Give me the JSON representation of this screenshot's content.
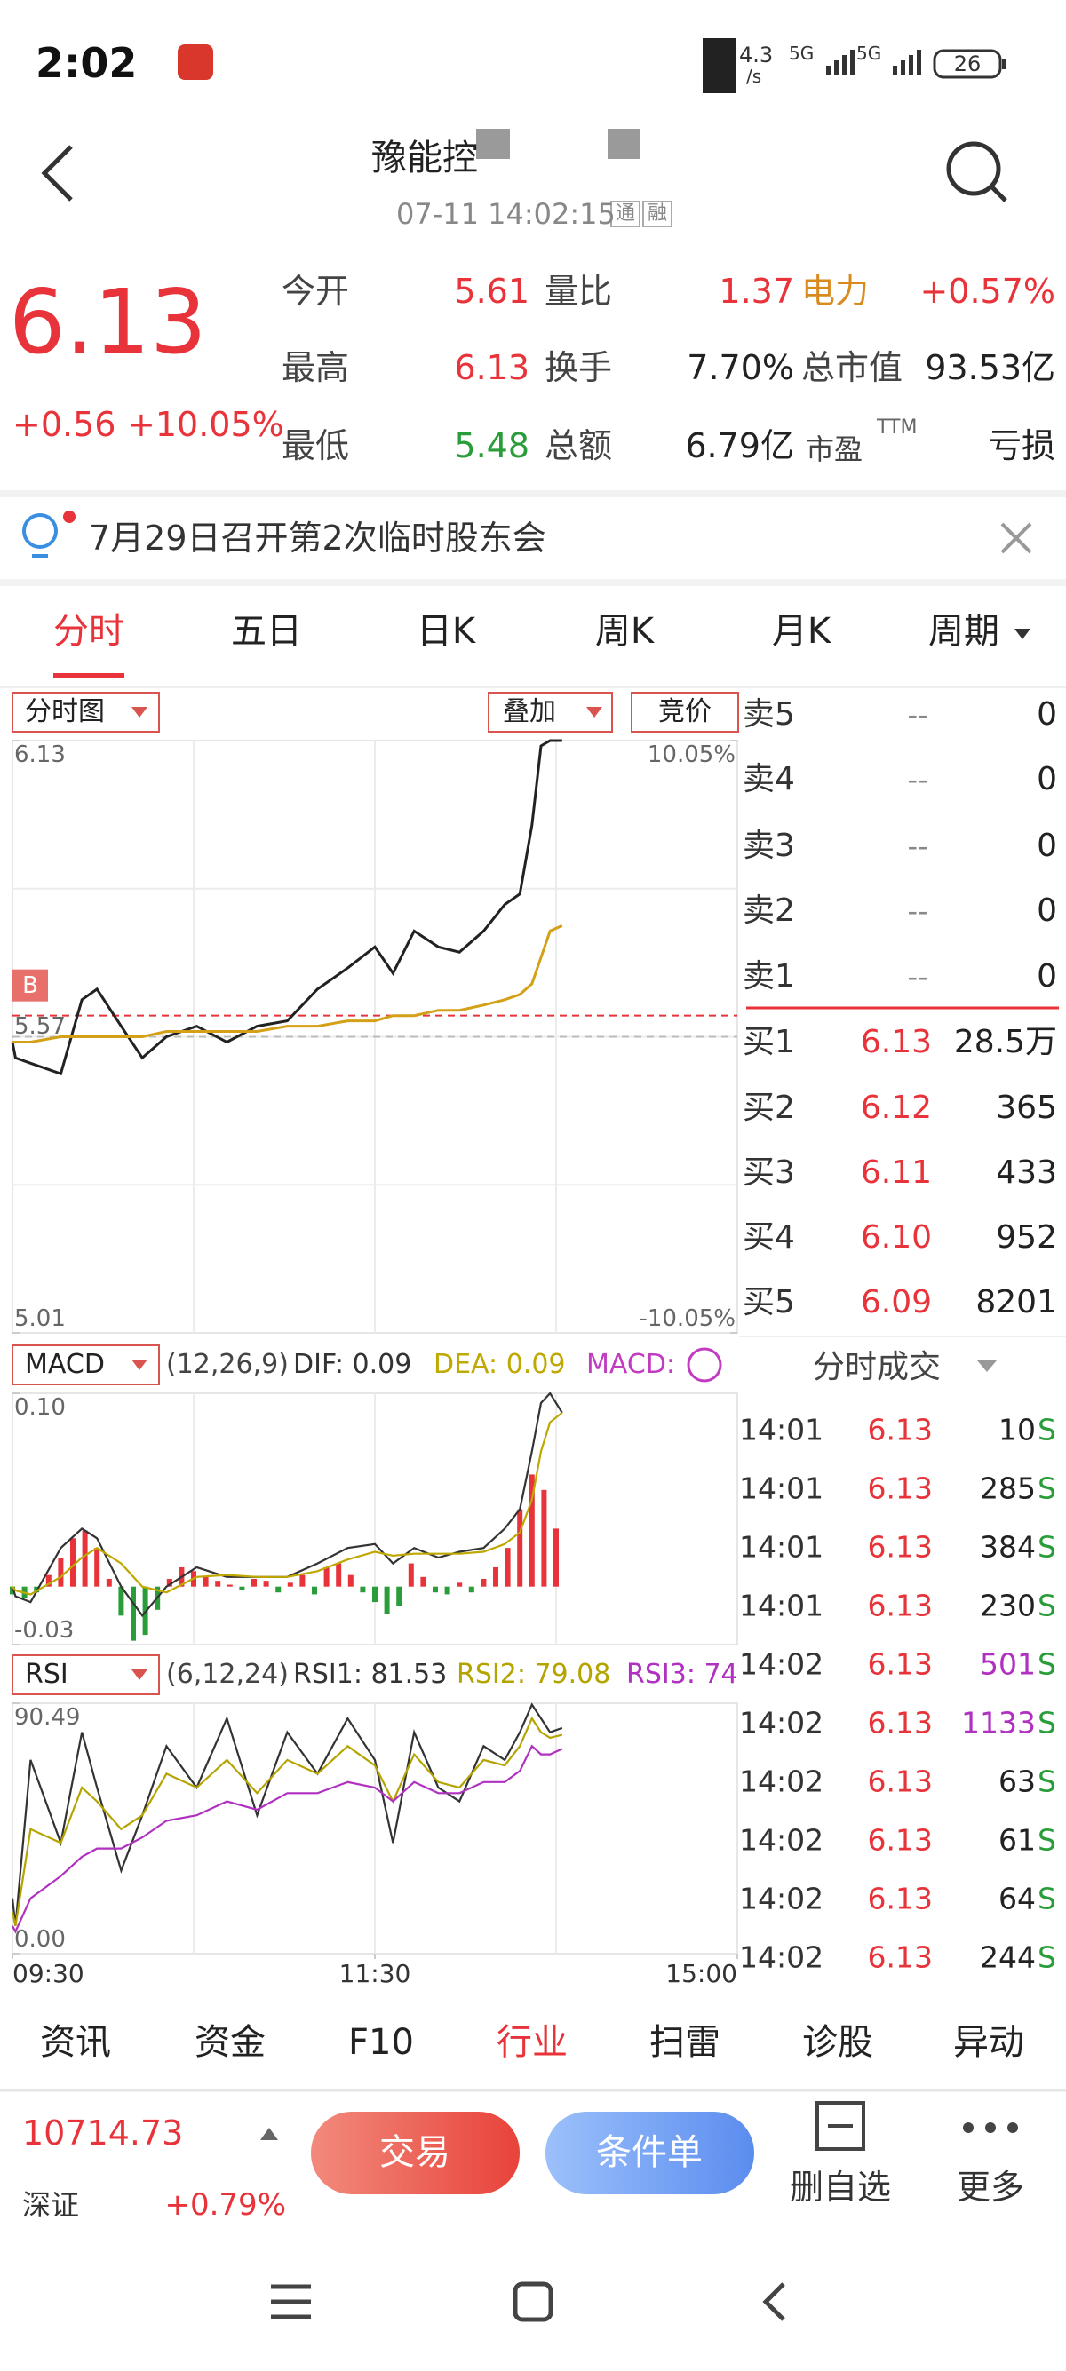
{
  "status_bar": {
    "time": "2:02",
    "network_speed": "4.3",
    "network_unit": "/s",
    "signals": [
      "5G",
      "5G"
    ],
    "battery": "26"
  },
  "header": {
    "title": "豫能控",
    "timestamp": "07-11 14:02:15",
    "badges": [
      "通",
      "融"
    ]
  },
  "quote": {
    "price": "6.13",
    "change": "+0.56",
    "change_pct": "+10.05%",
    "stats": [
      [
        {
          "label": "今开",
          "value": "5.61",
          "color": "#e8333a"
        },
        {
          "label": "量比",
          "value": "1.37",
          "color": "#e8333a"
        },
        {
          "label": "电力",
          "value": "+0.57%",
          "color": "#e8333a",
          "label_color": "#d98a1c"
        }
      ],
      [
        {
          "label": "最高",
          "value": "6.13",
          "color": "#e8333a"
        },
        {
          "label": "换手",
          "value": "7.70%",
          "color": "#222222"
        },
        {
          "label": "总市值",
          "value": "93.53亿",
          "color": "#222222"
        }
      ],
      [
        {
          "label": "最低",
          "value": "5.48",
          "color": "#2a9d3a"
        },
        {
          "label": "总额",
          "value": "6.79亿",
          "color": "#222222"
        },
        {
          "label": "市盈",
          "sup": "TTM",
          "value": "亏损",
          "color": "#222222"
        }
      ]
    ]
  },
  "notice": "7月29日召开第2次临时股东会",
  "tabs": [
    "分时",
    "五日",
    "日K",
    "周K",
    "月K",
    "周期"
  ],
  "active_tab": 0,
  "chart_toolbar": {
    "overlay": "叠加",
    "auction": "竞价"
  },
  "chart_data": [
    {
      "type": "line",
      "title": "分时图",
      "x": [
        "09:30",
        "09:31",
        "09:36",
        "09:46",
        "09:53",
        "09:58",
        "10:06",
        "10:13",
        "10:21",
        "10:31",
        "10:41",
        "10:51",
        "11:01",
        "11:11",
        "11:21",
        "13:00",
        "13:06",
        "13:13",
        "13:21",
        "13:28",
        "13:36",
        "13:43",
        "13:48",
        "13:52",
        "13:55",
        "13:58",
        "14:02"
      ],
      "xlim": [
        "09:30",
        "15:00"
      ],
      "ylim": [
        5.01,
        6.13
      ],
      "yticks": [
        5.01,
        6.13
      ],
      "y2lim": [
        -10.05,
        10.05
      ],
      "y2ticks": [
        {
          "value": 10.05,
          "label": "10.05%"
        },
        {
          "value": -10.05,
          "label": "-10.05%"
        }
      ],
      "reference_line": 5.57,
      "trade_marker": {
        "label": "B",
        "price": 5.61
      },
      "grid": true,
      "series": [
        {
          "color": "#222222",
          "values": [
            5.56,
            5.53,
            5.52,
            5.5,
            5.64,
            5.66,
            5.59,
            5.53,
            5.57,
            5.59,
            5.56,
            5.59,
            5.6,
            5.66,
            5.7,
            5.74,
            5.69,
            5.77,
            5.74,
            5.73,
            5.77,
            5.82,
            5.84,
            5.97,
            6.12,
            6.13,
            6.13
          ]
        },
        {
          "color": "#d4a017",
          "values": [
            5.56,
            5.56,
            5.56,
            5.57,
            5.57,
            5.57,
            5.57,
            5.57,
            5.58,
            5.58,
            5.58,
            5.58,
            5.59,
            5.59,
            5.6,
            5.6,
            5.61,
            5.61,
            5.62,
            5.62,
            5.63,
            5.64,
            5.65,
            5.67,
            5.72,
            5.77,
            5.78
          ]
        }
      ]
    },
    {
      "type": "macd",
      "title": "MACD",
      "params": "(12,26,9)",
      "x": [
        "09:30",
        "09:31",
        "09:36",
        "09:46",
        "09:53",
        "09:58",
        "10:06",
        "10:13",
        "10:21",
        "10:31",
        "10:41",
        "10:51",
        "11:01",
        "11:11",
        "11:21",
        "13:00",
        "13:06",
        "13:13",
        "13:21",
        "13:28",
        "13:36",
        "13:43",
        "13:48",
        "13:52",
        "13:55",
        "13:58",
        "14:02"
      ],
      "xlim": [
        "09:30",
        "15:00"
      ],
      "ylim": [
        -0.03,
        0.1
      ],
      "yticks": [
        -0.03,
        {
          "value": 0.1,
          "label": "0.10"
        }
      ],
      "colors": {
        "up": "#e8333a",
        "down": "#2a9d3a"
      },
      "grid": true,
      "series": [
        {
          "name": "DIF: 0.09",
          "type": "line",
          "color": "#333333",
          "values": [
            0,
            -0.005,
            -0.008,
            0.02,
            0.03,
            0.025,
            0,
            -0.015,
            0,
            0.01,
            0.005,
            0.005,
            0.005,
            0.012,
            0.02,
            0.022,
            0.012,
            0.02,
            0.015,
            0.018,
            0.02,
            0.03,
            0.04,
            0.07,
            0.095,
            0.1,
            0.09
          ]
        },
        {
          "name": "DEA: 0.09",
          "type": "line",
          "color": "#bfa800",
          "values": [
            0,
            -0.002,
            -0.004,
            0.005,
            0.015,
            0.02,
            0.012,
            0,
            -0.003,
            0.005,
            0.006,
            0.005,
            0.005,
            0.008,
            0.014,
            0.018,
            0.016,
            0.017,
            0.017,
            0.017,
            0.018,
            0.022,
            0.028,
            0.045,
            0.07,
            0.085,
            0.09
          ]
        },
        {
          "name": "MACD:",
          "type": "bar",
          "color": "#c23cc2",
          "x": [
            "09:30",
            "09:34",
            "09:38",
            "09:42",
            "09:46",
            "09:50",
            "09:54",
            "09:58",
            "10:02",
            "10:06",
            "10:10",
            "10:14",
            "10:18",
            "10:22",
            "10:26",
            "10:30",
            "10:34",
            "10:38",
            "10:42",
            "10:46",
            "10:50",
            "10:54",
            "10:58",
            "11:02",
            "11:06",
            "11:10",
            "11:14",
            "11:18",
            "11:22",
            "11:26",
            "13:00",
            "13:04",
            "13:08",
            "13:12",
            "13:16",
            "13:20",
            "13:24",
            "13:28",
            "13:32",
            "13:36",
            "13:40",
            "13:44",
            "13:48",
            "13:52",
            "13:56",
            "14:00"
          ],
          "values": [
            -0.004,
            -0.006,
            -0.003,
            0.006,
            0.015,
            0.025,
            0.029,
            0.02,
            0.004,
            -0.015,
            -0.028,
            -0.025,
            -0.012,
            0.004,
            0.01,
            0.008,
            0.005,
            0.003,
            0.001,
            -0.002,
            0.004,
            0.003,
            -0.003,
            0.002,
            0.006,
            -0.004,
            0.01,
            0.012,
            0.006,
            -0.003,
            -0.008,
            -0.014,
            -0.01,
            0.012,
            0.005,
            -0.003,
            -0.004,
            0.002,
            -0.003,
            0.004,
            0.01,
            0.02,
            0.04,
            0.058,
            0.05,
            0.03
          ]
        }
      ]
    },
    {
      "type": "line",
      "title": "RSI",
      "params": "(6,12,24)",
      "x": [
        "09:30",
        "09:31",
        "09:36",
        "09:46",
        "09:53",
        "09:58",
        "10:06",
        "10:13",
        "10:21",
        "10:31",
        "10:41",
        "10:51",
        "11:01",
        "11:11",
        "11:21",
        "13:00",
        "13:06",
        "13:13",
        "13:21",
        "13:28",
        "13:36",
        "13:43",
        "13:48",
        "13:52",
        "13:55",
        "13:58",
        "14:02"
      ],
      "xlim": [
        "09:30",
        "15:00"
      ],
      "xticks": [
        "09:30",
        "11:30",
        "15:00"
      ],
      "ylim": [
        0,
        90.49
      ],
      "yticks": [
        {
          "value": 0,
          "label": "0.00"
        },
        90.49
      ],
      "grid": true,
      "series": [
        {
          "name": "RSI1: 81.53",
          "color": "#333333",
          "values": [
            20,
            10,
            70,
            40,
            80,
            60,
            30,
            50,
            75,
            60,
            85,
            50,
            80,
            65,
            85,
            70,
            40,
            80,
            60,
            55,
            75,
            70,
            80,
            90,
            85,
            80,
            81.53
          ]
        },
        {
          "name": "RSI2: 79.08",
          "color": "#b5a400",
          "values": [
            15,
            10,
            45,
            40,
            60,
            55,
            45,
            50,
            65,
            60,
            70,
            58,
            70,
            65,
            75,
            68,
            55,
            72,
            62,
            60,
            70,
            68,
            75,
            85,
            80,
            78,
            79.08
          ]
        },
        {
          "name": "RSI3: 74",
          "color": "#b030c0",
          "values": [
            10,
            8,
            20,
            28,
            35,
            38,
            38,
            42,
            48,
            50,
            55,
            52,
            58,
            58,
            62,
            60,
            55,
            62,
            58,
            58,
            62,
            62,
            66,
            75,
            72,
            72,
            74
          ]
        }
      ]
    }
  ],
  "order_book": {
    "sell": [
      {
        "label": "卖5",
        "price": "--",
        "volume": "0"
      },
      {
        "label": "卖4",
        "price": "--",
        "volume": "0"
      },
      {
        "label": "卖3",
        "price": "--",
        "volume": "0"
      },
      {
        "label": "卖2",
        "price": "--",
        "volume": "0"
      },
      {
        "label": "卖1",
        "price": "--",
        "volume": "0"
      }
    ],
    "buy": [
      {
        "label": "买1",
        "price": "6.13",
        "volume": "28.5万"
      },
      {
        "label": "买2",
        "price": "6.12",
        "volume": "365"
      },
      {
        "label": "买3",
        "price": "6.11",
        "volume": "433"
      },
      {
        "label": "买4",
        "price": "6.10",
        "volume": "952"
      },
      {
        "label": "买5",
        "price": "6.09",
        "volume": "8201"
      }
    ]
  },
  "trades": {
    "title": "分时成交",
    "rows": [
      {
        "time": "14:01",
        "price": "6.13",
        "volume": "10",
        "side": "S",
        "volume_color": "#222222"
      },
      {
        "time": "14:01",
        "price": "6.13",
        "volume": "285",
        "side": "S",
        "volume_color": "#222222"
      },
      {
        "time": "14:01",
        "price": "6.13",
        "volume": "384",
        "side": "S",
        "volume_color": "#222222"
      },
      {
        "time": "14:01",
        "price": "6.13",
        "volume": "230",
        "side": "S",
        "volume_color": "#222222"
      },
      {
        "time": "14:02",
        "price": "6.13",
        "volume": "501",
        "side": "S",
        "volume_color": "#b030c0"
      },
      {
        "time": "14:02",
        "price": "6.13",
        "volume": "1133",
        "side": "S",
        "volume_color": "#b030c0"
      },
      {
        "time": "14:02",
        "price": "6.13",
        "volume": "63",
        "side": "S",
        "volume_color": "#222222"
      },
      {
        "time": "14:02",
        "price": "6.13",
        "volume": "61",
        "side": "S",
        "volume_color": "#222222"
      },
      {
        "time": "14:02",
        "price": "6.13",
        "volume": "64",
        "side": "S",
        "volume_color": "#222222"
      },
      {
        "time": "14:02",
        "price": "6.13",
        "volume": "244",
        "side": "S",
        "volume_color": "#222222"
      }
    ]
  },
  "bottom_tabs": [
    "资讯",
    "资金",
    "F10",
    "行业",
    "扫雷",
    "诊股",
    "异动"
  ],
  "active_bottom_tab": 3,
  "index_bar": {
    "value": "10714.73",
    "name": "深证",
    "change": "+0.79%"
  },
  "buttons": [
    "交易",
    "条件单"
  ],
  "actions": [
    "删自选",
    "更多"
  ]
}
